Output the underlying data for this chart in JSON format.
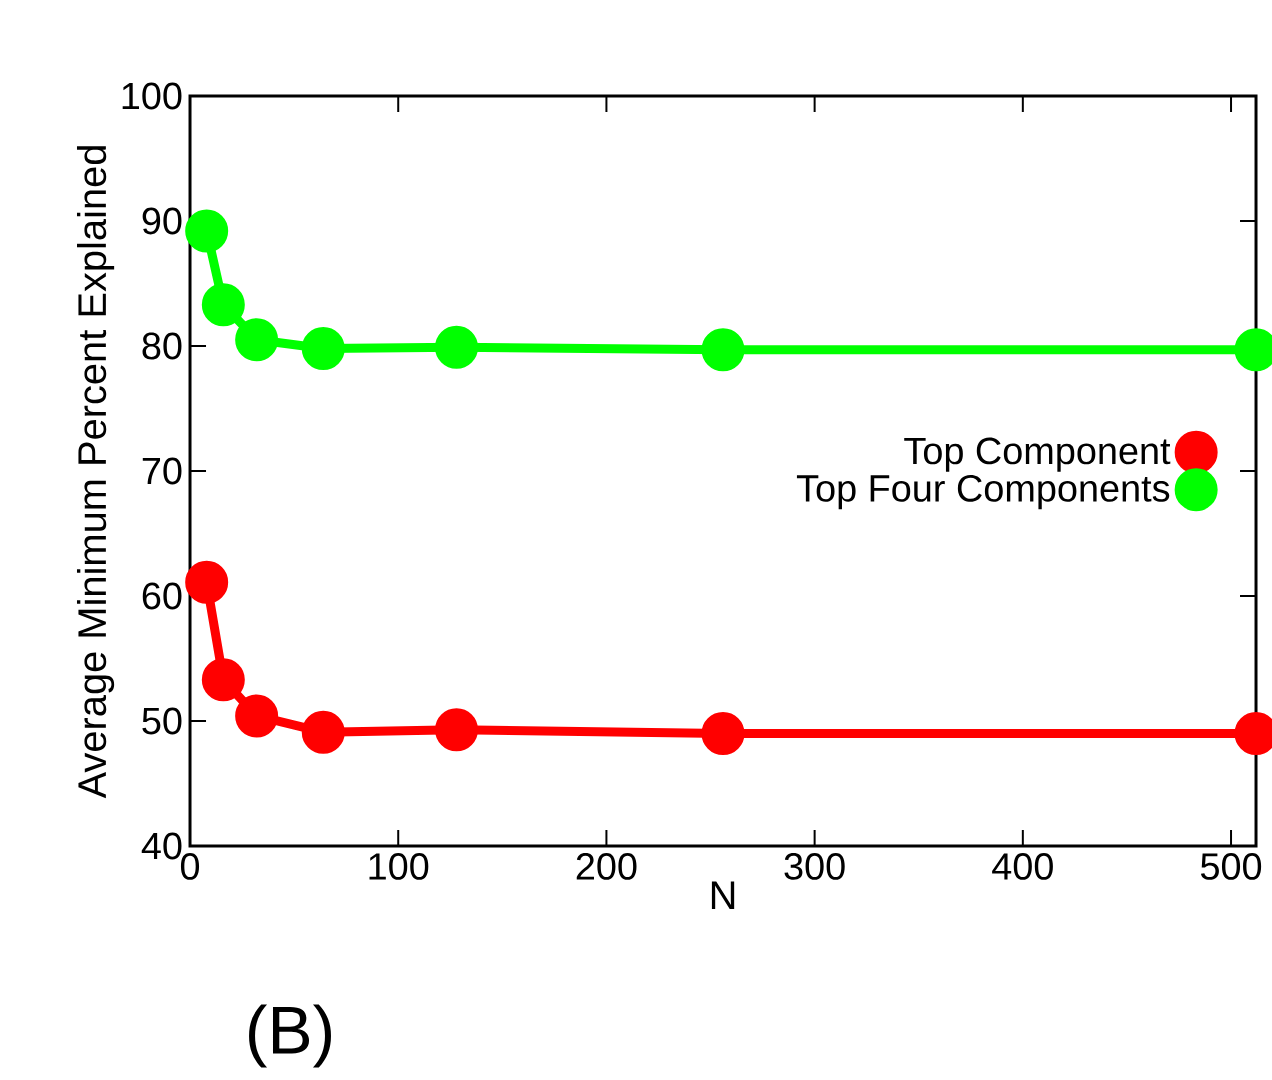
{
  "chart_data": {
    "type": "line",
    "xlabel": "N",
    "ylabel": "Average Minimum Percent Explained",
    "x": [
      8,
      16,
      32,
      64,
      128,
      256,
      512
    ],
    "series": [
      {
        "name": "Top Component",
        "color": "#ff0000",
        "values": [
          61.1,
          53.3,
          50.4,
          49.1,
          49.3,
          49.0,
          49.0
        ]
      },
      {
        "name": "Top Four Components",
        "color": "#00ff00",
        "values": [
          89.2,
          83.3,
          80.5,
          79.8,
          79.9,
          79.7,
          79.7
        ]
      }
    ],
    "xlim": [
      0,
      512
    ],
    "ylim": [
      40,
      100
    ],
    "xticks": [
      0,
      100,
      200,
      300,
      400,
      500
    ],
    "yticks": [
      40,
      50,
      60,
      70,
      80,
      90,
      100
    ],
    "marker": "circle",
    "line_style": "solid",
    "legend": "right",
    "grid": false,
    "annotations": [
      "(B)"
    ]
  }
}
